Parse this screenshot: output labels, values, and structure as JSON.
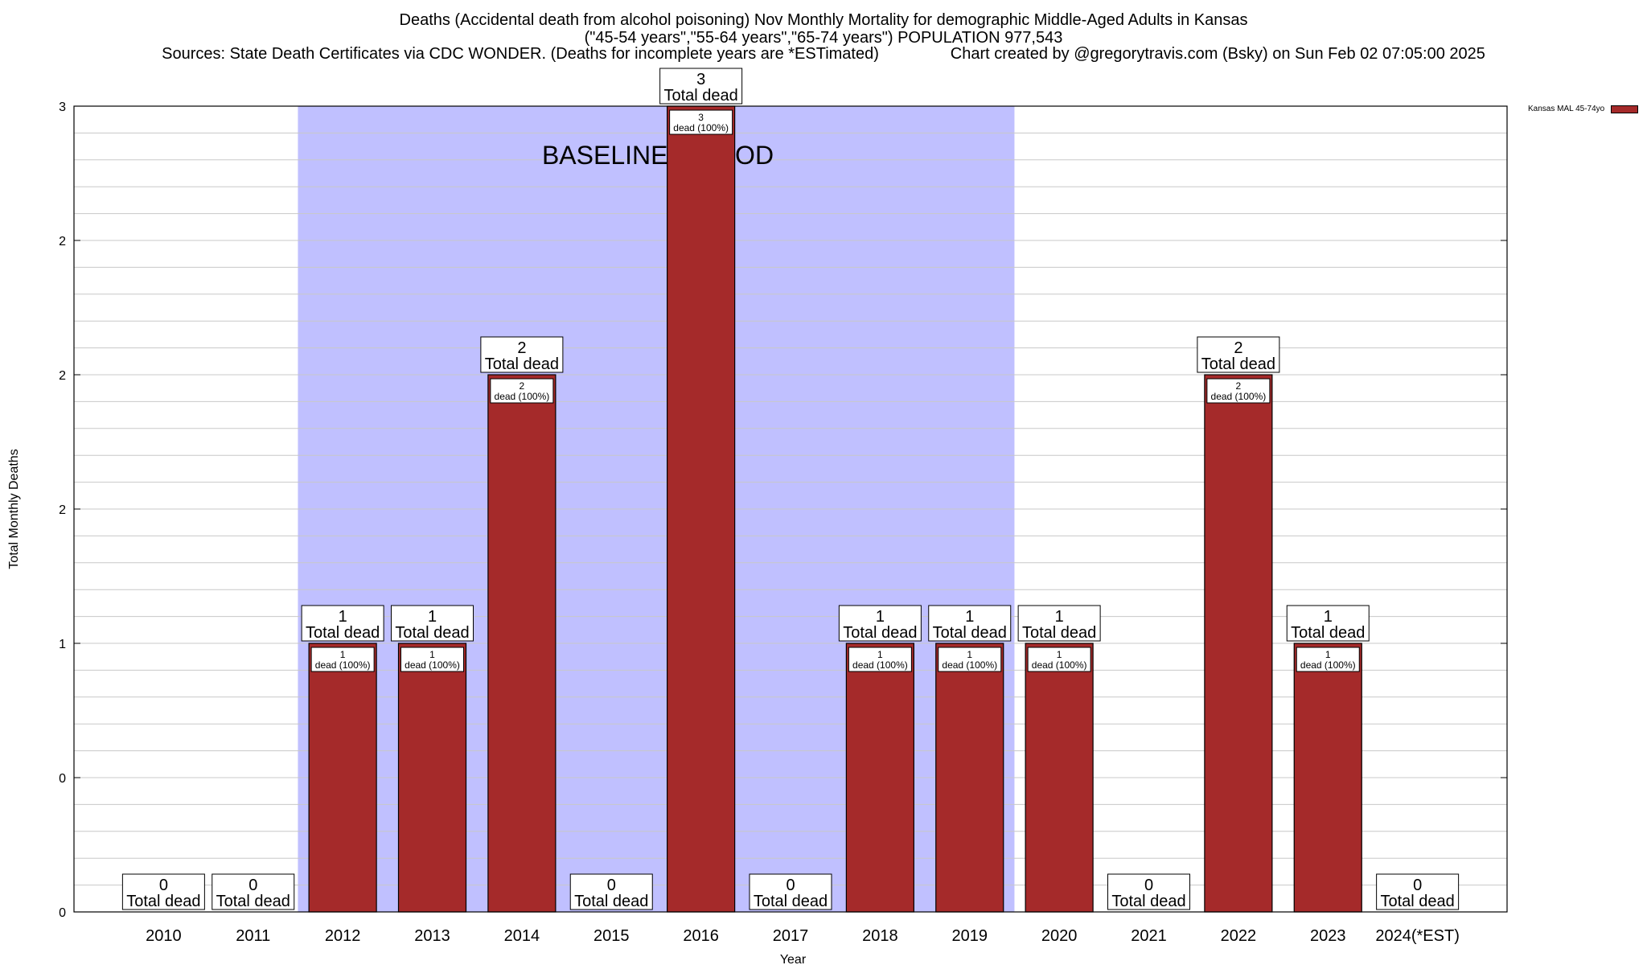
{
  "header": {
    "line1": "Deaths (Accidental death from alcohol poisoning) Nov Monthly Mortality for demographic Middle-Aged Adults in Kansas",
    "line2": "(\"45-54 years\",\"55-64 years\",\"65-74 years\") POPULATION 977,543",
    "line3": "Sources: State Death Certificates via CDC WONDER. (Deaths for incomplete years are *ESTimated)                Chart created by @gregorytravis.com (Bsky) on Sun Feb 02 07:05:00 2025"
  },
  "legend": {
    "label": "Kansas MAL 45-74yo"
  },
  "colors": {
    "bar": "#a52a2a",
    "baseline": "#c0c0ff",
    "grid": "#c8c8c8"
  },
  "chart_data": {
    "type": "bar",
    "categories": [
      "2010",
      "2011",
      "2012",
      "2013",
      "2014",
      "2015",
      "2016",
      "2017",
      "2018",
      "2019",
      "2020",
      "2021",
      "2022",
      "2023",
      "2024(*EST)"
    ],
    "series": [
      {
        "name": "Kansas MAL 45-74yo",
        "values": [
          0,
          0,
          1,
          1,
          2,
          0,
          3,
          0,
          1,
          1,
          1,
          0,
          2,
          1,
          0
        ]
      }
    ],
    "xlabel": "Year",
    "ylabel": "Total Monthly Deaths",
    "ylim": [
      0,
      3
    ],
    "ytick_labels": [
      "0",
      "0",
      "1",
      "2",
      "2",
      "2",
      "3"
    ],
    "baseline_period": {
      "label": "BASELINE PERIOD",
      "start": "2012",
      "end": "2019"
    },
    "top_label_suffix": "Total dead",
    "inner_label_suffix": "dead (100%)",
    "grid": true,
    "legend_position": "top-right"
  }
}
